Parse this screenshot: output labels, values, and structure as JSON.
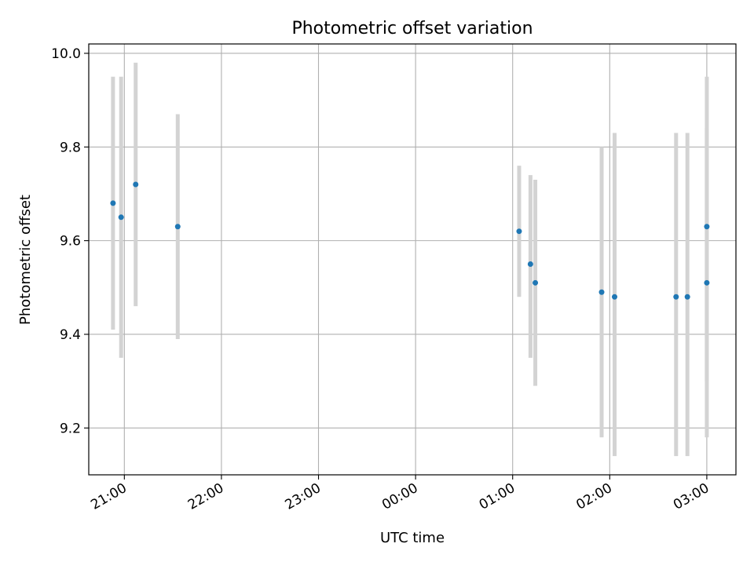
{
  "chart_data": {
    "type": "scatter",
    "title": "Photometric offset variation",
    "xlabel": "UTC time",
    "ylabel": "Photometric offset",
    "x_is_time": true,
    "xlim": [
      "20:38",
      "03:18"
    ],
    "ylim": [
      9.1,
      10.02
    ],
    "x_ticks": [
      "21:00",
      "22:00",
      "23:00",
      "00:00",
      "01:00",
      "02:00",
      "03:00"
    ],
    "y_ticks": [
      9.2,
      9.4,
      9.6,
      9.8,
      10.0
    ],
    "grid": true,
    "legend": "none",
    "marker_color": "#1f77b4",
    "errorbar_color": "#d3d3d3",
    "points": [
      {
        "t": "20:53",
        "y": 9.68,
        "err_low": 9.41,
        "err_high": 9.95
      },
      {
        "t": "20:58",
        "y": 9.65,
        "err_low": 9.35,
        "err_high": 9.95
      },
      {
        "t": "21:07",
        "y": 9.72,
        "err_low": 9.46,
        "err_high": 9.98
      },
      {
        "t": "21:33",
        "y": 9.63,
        "err_low": 9.39,
        "err_high": 9.87
      },
      {
        "t": "01:04",
        "y": 9.62,
        "err_low": 9.48,
        "err_high": 9.76
      },
      {
        "t": "01:11",
        "y": 9.55,
        "err_low": 9.35,
        "err_high": 9.74
      },
      {
        "t": "01:14",
        "y": 9.51,
        "err_low": 9.29,
        "err_high": 9.73
      },
      {
        "t": "01:55",
        "y": 9.49,
        "err_low": 9.18,
        "err_high": 9.8
      },
      {
        "t": "02:03",
        "y": 9.48,
        "err_low": 9.14,
        "err_high": 9.83
      },
      {
        "t": "02:41",
        "y": 9.48,
        "err_low": 9.14,
        "err_high": 9.83
      },
      {
        "t": "02:48",
        "y": 9.48,
        "err_low": 9.14,
        "err_high": 9.83
      },
      {
        "t": "03:00",
        "y": 9.63,
        "err_low": 9.3,
        "err_high": 9.95
      },
      {
        "t": "03:00",
        "y": 9.51,
        "err_low": 9.18,
        "err_high": 9.84
      }
    ]
  }
}
